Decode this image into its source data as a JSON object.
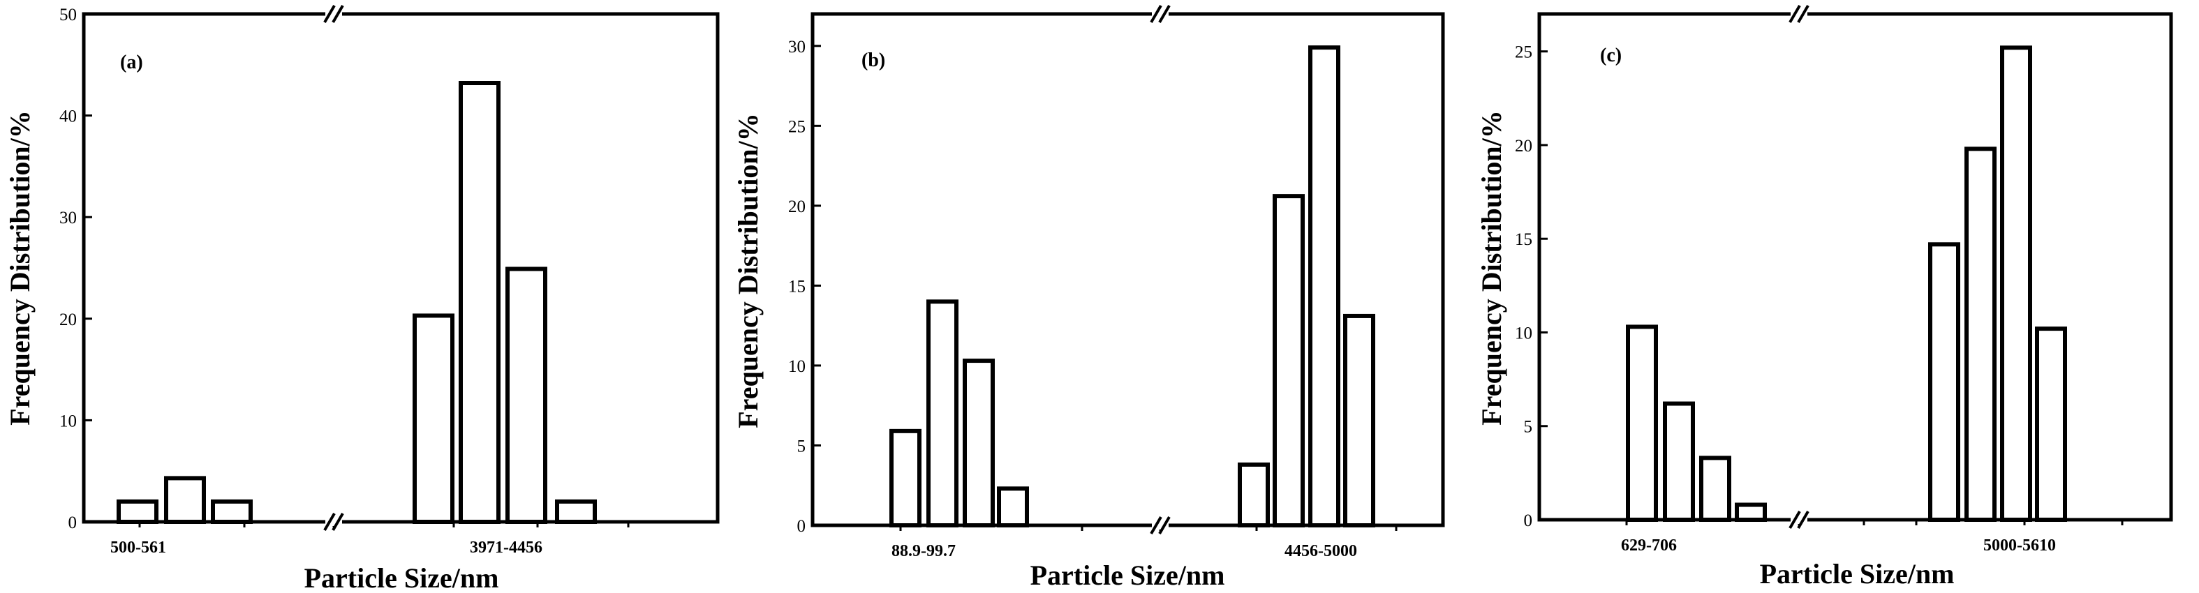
{
  "chart_data": [
    {
      "type": "bar",
      "panel_label": "(a)",
      "xlabel": "Particle Size/nm",
      "ylabel": "Frequency Distribution/%",
      "ylim": [
        0,
        50
      ],
      "yticks": [
        0,
        10,
        20,
        30,
        40,
        50
      ],
      "axis_break": true,
      "category_labels": [
        "500-561",
        "3971-4456"
      ],
      "series": [
        {
          "values": [
            2.0,
            4.3,
            2.0,
            20.3,
            43.2,
            24.9,
            2.0
          ]
        }
      ]
    },
    {
      "type": "bar",
      "panel_label": "(b)",
      "xlabel": "Particle Size/nm",
      "ylabel": "Frequency Distribution/%",
      "ylim": [
        0,
        32
      ],
      "yticks": [
        0,
        5,
        10,
        15,
        20,
        25,
        30
      ],
      "axis_break": true,
      "category_labels": [
        "88.9-99.7",
        "4456-5000"
      ],
      "series": [
        {
          "values": [
            5.9,
            14.0,
            10.3,
            2.3,
            3.8,
            20.6,
            29.9,
            13.1
          ]
        }
      ]
    },
    {
      "type": "bar",
      "panel_label": "(c)",
      "xlabel": "Particle Size/nm",
      "ylabel": "Frequency Distribution/%",
      "ylim": [
        0,
        27
      ],
      "yticks": [
        0,
        5,
        10,
        15,
        20,
        25
      ],
      "axis_break": true,
      "category_labels": [
        "629-706",
        "5000-5610"
      ],
      "series": [
        {
          "values": [
            10.3,
            6.2,
            3.3,
            0.8,
            14.7,
            19.8,
            25.2,
            10.2
          ]
        }
      ]
    }
  ]
}
